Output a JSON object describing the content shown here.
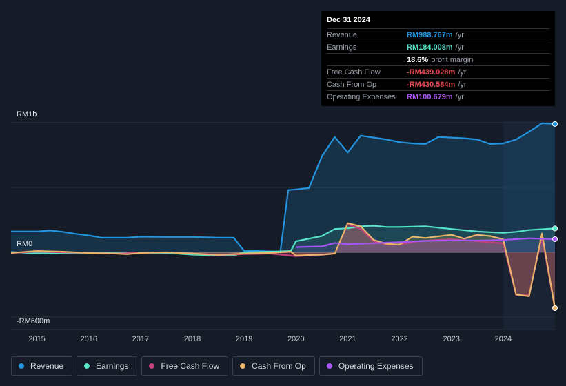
{
  "tooltip": {
    "date": "Dec 31 2024",
    "rows": [
      {
        "label": "Revenue",
        "value": "RM988.767m",
        "unit": "/yr",
        "color": "#2394df"
      },
      {
        "label": "Earnings",
        "value": "RM184.008m",
        "unit": "/yr",
        "color": "#56e3c8"
      },
      {
        "label": "",
        "value": "18.6%",
        "unit": "profit margin",
        "color": "#ffffff"
      },
      {
        "label": "Free Cash Flow",
        "value": "-RM439.028m",
        "unit": "/yr",
        "color": "#e84a55"
      },
      {
        "label": "Cash From Op",
        "value": "-RM430.584m",
        "unit": "/yr",
        "color": "#e84a55"
      },
      {
        "label": "Operating Expenses",
        "value": "RM100.679m",
        "unit": "/yr",
        "color": "#a855f7"
      }
    ]
  },
  "legend": [
    {
      "label": "Revenue",
      "color": "#2394df"
    },
    {
      "label": "Earnings",
      "color": "#56e3c8"
    },
    {
      "label": "Free Cash Flow",
      "color": "#c4407a"
    },
    {
      "label": "Cash From Op",
      "color": "#e8b36a"
    },
    {
      "label": "Operating Expenses",
      "color": "#a855f7"
    }
  ],
  "chart_data": {
    "type": "area",
    "title": "",
    "y_labels": [
      "RM1b",
      "RM0",
      "-RM600m"
    ],
    "ylim": [
      -600,
      1000
    ],
    "xlim": [
      2014.5,
      2025.0
    ],
    "x_ticks": [
      "2015",
      "2016",
      "2017",
      "2018",
      "2019",
      "2020",
      "2021",
      "2022",
      "2023",
      "2024"
    ],
    "highlight_from": 2024.0,
    "series": [
      {
        "name": "Revenue",
        "color": "#2394df",
        "points": [
          [
            2014.5,
            160
          ],
          [
            2015.0,
            160
          ],
          [
            2015.25,
            168
          ],
          [
            2015.5,
            158
          ],
          [
            2015.75,
            142
          ],
          [
            2016.0,
            130
          ],
          [
            2016.25,
            112
          ],
          [
            2016.75,
            112
          ],
          [
            2017.0,
            120
          ],
          [
            2017.5,
            118
          ],
          [
            2018.0,
            118
          ],
          [
            2018.5,
            112
          ],
          [
            2018.8,
            112
          ],
          [
            2019.0,
            10
          ],
          [
            2019.25,
            10
          ],
          [
            2019.7,
            5
          ],
          [
            2019.85,
            480
          ],
          [
            2020.0,
            485
          ],
          [
            2020.25,
            495
          ],
          [
            2020.5,
            740
          ],
          [
            2020.75,
            890
          ],
          [
            2021.0,
            770
          ],
          [
            2021.25,
            900
          ],
          [
            2021.5,
            885
          ],
          [
            2021.75,
            870
          ],
          [
            2022.0,
            850
          ],
          [
            2022.25,
            840
          ],
          [
            2022.5,
            835
          ],
          [
            2022.75,
            890
          ],
          [
            2023.0,
            885
          ],
          [
            2023.25,
            880
          ],
          [
            2023.5,
            870
          ],
          [
            2023.75,
            835
          ],
          [
            2024.0,
            840
          ],
          [
            2024.25,
            870
          ],
          [
            2024.5,
            930
          ],
          [
            2024.75,
            995
          ],
          [
            2025.0,
            990
          ]
        ]
      },
      {
        "name": "Earnings",
        "color": "#56e3c8",
        "points": [
          [
            2014.5,
            2
          ],
          [
            2015.0,
            -8
          ],
          [
            2015.5,
            -5
          ],
          [
            2016.0,
            -6
          ],
          [
            2016.5,
            -5
          ],
          [
            2017.0,
            -3
          ],
          [
            2017.5,
            -5
          ],
          [
            2018.0,
            -18
          ],
          [
            2018.5,
            -25
          ],
          [
            2018.8,
            -25
          ],
          [
            2019.0,
            0
          ],
          [
            2019.5,
            5
          ],
          [
            2019.9,
            10
          ],
          [
            2020.0,
            85
          ],
          [
            2020.5,
            125
          ],
          [
            2020.75,
            180
          ],
          [
            2021.0,
            185
          ],
          [
            2021.25,
            200
          ],
          [
            2021.5,
            205
          ],
          [
            2021.75,
            195
          ],
          [
            2022.0,
            195
          ],
          [
            2022.5,
            200
          ],
          [
            2023.0,
            180
          ],
          [
            2023.5,
            160
          ],
          [
            2024.0,
            150
          ],
          [
            2024.25,
            158
          ],
          [
            2024.5,
            172
          ],
          [
            2025.0,
            184
          ]
        ]
      },
      {
        "name": "Free Cash Flow",
        "color": "#c4407a",
        "points": [
          [
            2014.5,
            -5
          ],
          [
            2015.0,
            5
          ],
          [
            2015.5,
            0
          ],
          [
            2016.0,
            -5
          ],
          [
            2016.5,
            -10
          ],
          [
            2017.0,
            -5
          ],
          [
            2017.5,
            0
          ],
          [
            2018.0,
            -10
          ],
          [
            2018.5,
            -20
          ],
          [
            2019.0,
            -15
          ],
          [
            2019.5,
            -10
          ],
          [
            2020.0,
            -30
          ],
          [
            2020.5,
            -20
          ],
          [
            2020.75,
            -10
          ],
          [
            2021.0,
            220
          ],
          [
            2021.25,
            180
          ],
          [
            2021.5,
            85
          ],
          [
            2021.75,
            60
          ],
          [
            2022.0,
            60
          ],
          [
            2022.25,
            80
          ],
          [
            2022.5,
            90
          ],
          [
            2023.0,
            100
          ],
          [
            2023.5,
            85
          ],
          [
            2024.0,
            70
          ],
          [
            2024.25,
            -330
          ],
          [
            2024.5,
            -330
          ],
          [
            2024.75,
            120
          ],
          [
            2025.0,
            -439
          ]
        ]
      },
      {
        "name": "Cash From Op",
        "color": "#e8b36a",
        "points": [
          [
            2014.5,
            -5
          ],
          [
            2015.0,
            10
          ],
          [
            2015.5,
            5
          ],
          [
            2016.0,
            -5
          ],
          [
            2016.5,
            -10
          ],
          [
            2016.75,
            -15
          ],
          [
            2017.0,
            -5
          ],
          [
            2017.5,
            0
          ],
          [
            2018.0,
            -10
          ],
          [
            2018.5,
            -20
          ],
          [
            2019.0,
            -10
          ],
          [
            2019.5,
            -5
          ],
          [
            2019.9,
            5
          ],
          [
            2020.0,
            -25
          ],
          [
            2020.5,
            -18
          ],
          [
            2020.75,
            -10
          ],
          [
            2021.0,
            225
          ],
          [
            2021.25,
            200
          ],
          [
            2021.5,
            95
          ],
          [
            2021.75,
            65
          ],
          [
            2022.0,
            60
          ],
          [
            2022.25,
            120
          ],
          [
            2022.5,
            110
          ],
          [
            2023.0,
            135
          ],
          [
            2023.25,
            105
          ],
          [
            2023.5,
            135
          ],
          [
            2023.75,
            125
          ],
          [
            2024.0,
            100
          ],
          [
            2024.25,
            -325
          ],
          [
            2024.5,
            -340
          ],
          [
            2024.75,
            145
          ],
          [
            2025.0,
            -431
          ]
        ]
      },
      {
        "name": "Operating Expenses",
        "color": "#a855f7",
        "points": [
          [
            2020.0,
            40
          ],
          [
            2020.5,
            45
          ],
          [
            2020.75,
            72
          ],
          [
            2021.0,
            62
          ],
          [
            2021.5,
            70
          ],
          [
            2022.0,
            78
          ],
          [
            2022.5,
            88
          ],
          [
            2023.0,
            92
          ],
          [
            2023.5,
            90
          ],
          [
            2024.0,
            95
          ],
          [
            2024.5,
            108
          ],
          [
            2025.0,
            101
          ]
        ]
      }
    ]
  }
}
